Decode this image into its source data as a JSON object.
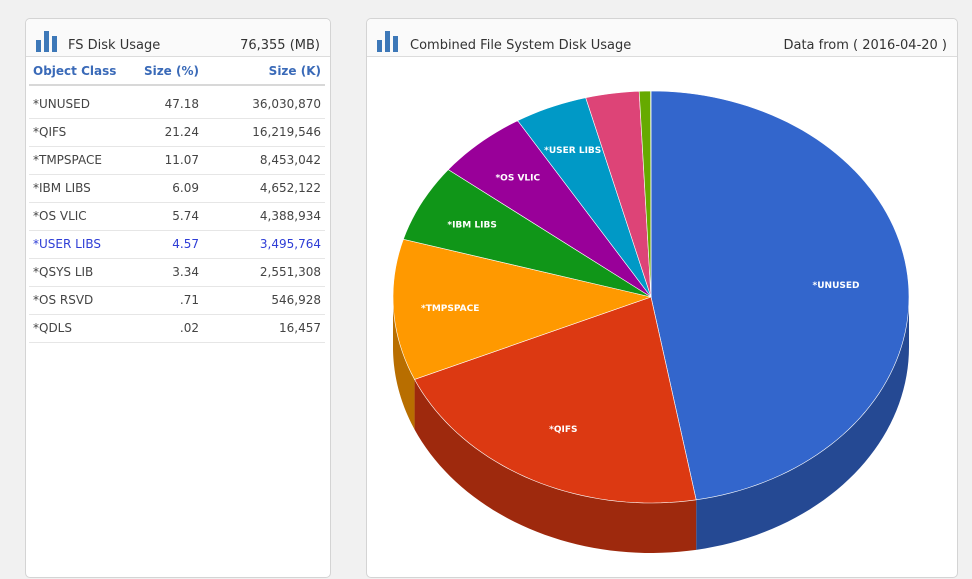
{
  "left_panel": {
    "title": "FS Disk Usage",
    "total": "76,355 (MB)",
    "columns": [
      "Object Class",
      "Size (%)",
      "Size (K)"
    ],
    "rows": [
      {
        "name": "*UNUSED",
        "pct": "47.18",
        "size": "36,030,870",
        "highlight": false
      },
      {
        "name": "*QIFS",
        "pct": "21.24",
        "size": "16,219,546",
        "highlight": false
      },
      {
        "name": "*TMPSPACE",
        "pct": "11.07",
        "size": "8,453,042",
        "highlight": false
      },
      {
        "name": "*IBM LIBS",
        "pct": "6.09",
        "size": "4,652,122",
        "highlight": false
      },
      {
        "name": "*OS VLIC",
        "pct": "5.74",
        "size": "4,388,934",
        "highlight": false
      },
      {
        "name": "*USER LIBS",
        "pct": "4.57",
        "size": "3,495,764",
        "highlight": true
      },
      {
        "name": "*QSYS LIB",
        "pct": "3.34",
        "size": "2,551,308",
        "highlight": false
      },
      {
        "name": "*OS RSVD",
        "pct": ".71",
        "size": "546,928",
        "highlight": false
      },
      {
        "name": "*QDLS",
        "pct": ".02",
        "size": "16,457",
        "highlight": false
      }
    ]
  },
  "right_panel": {
    "title": "Combined File System Disk Usage",
    "data_from": "Data from ( 2016-04-20 )"
  },
  "icon": "bar-chart-icon",
  "chart_data": {
    "type": "pie",
    "style": "3d",
    "title": "Combined File System Disk Usage",
    "slices": [
      {
        "label": "*UNUSED",
        "value": 47.18,
        "color": "#3366cc",
        "show_label": true
      },
      {
        "label": "*QIFS",
        "value": 21.24,
        "color": "#dc3912",
        "show_label": true
      },
      {
        "label": "*TMPSPACE",
        "value": 11.07,
        "color": "#ff9900",
        "show_label": true
      },
      {
        "label": "*IBM LIBS",
        "value": 6.09,
        "color": "#109618",
        "show_label": true
      },
      {
        "label": "*OS VLIC",
        "value": 5.74,
        "color": "#990099",
        "show_label": true
      },
      {
        "label": "*USER LIBS",
        "value": 4.57,
        "color": "#0099c6",
        "show_label": true
      },
      {
        "label": "*QSYS LIB",
        "value": 3.34,
        "color": "#dd4477",
        "show_label": false
      },
      {
        "label": "*OS RSVD",
        "value": 0.71,
        "color": "#66aa00",
        "show_label": false
      },
      {
        "label": "*QDLS",
        "value": 0.02,
        "color": "#b82e2e",
        "show_label": false
      }
    ]
  }
}
